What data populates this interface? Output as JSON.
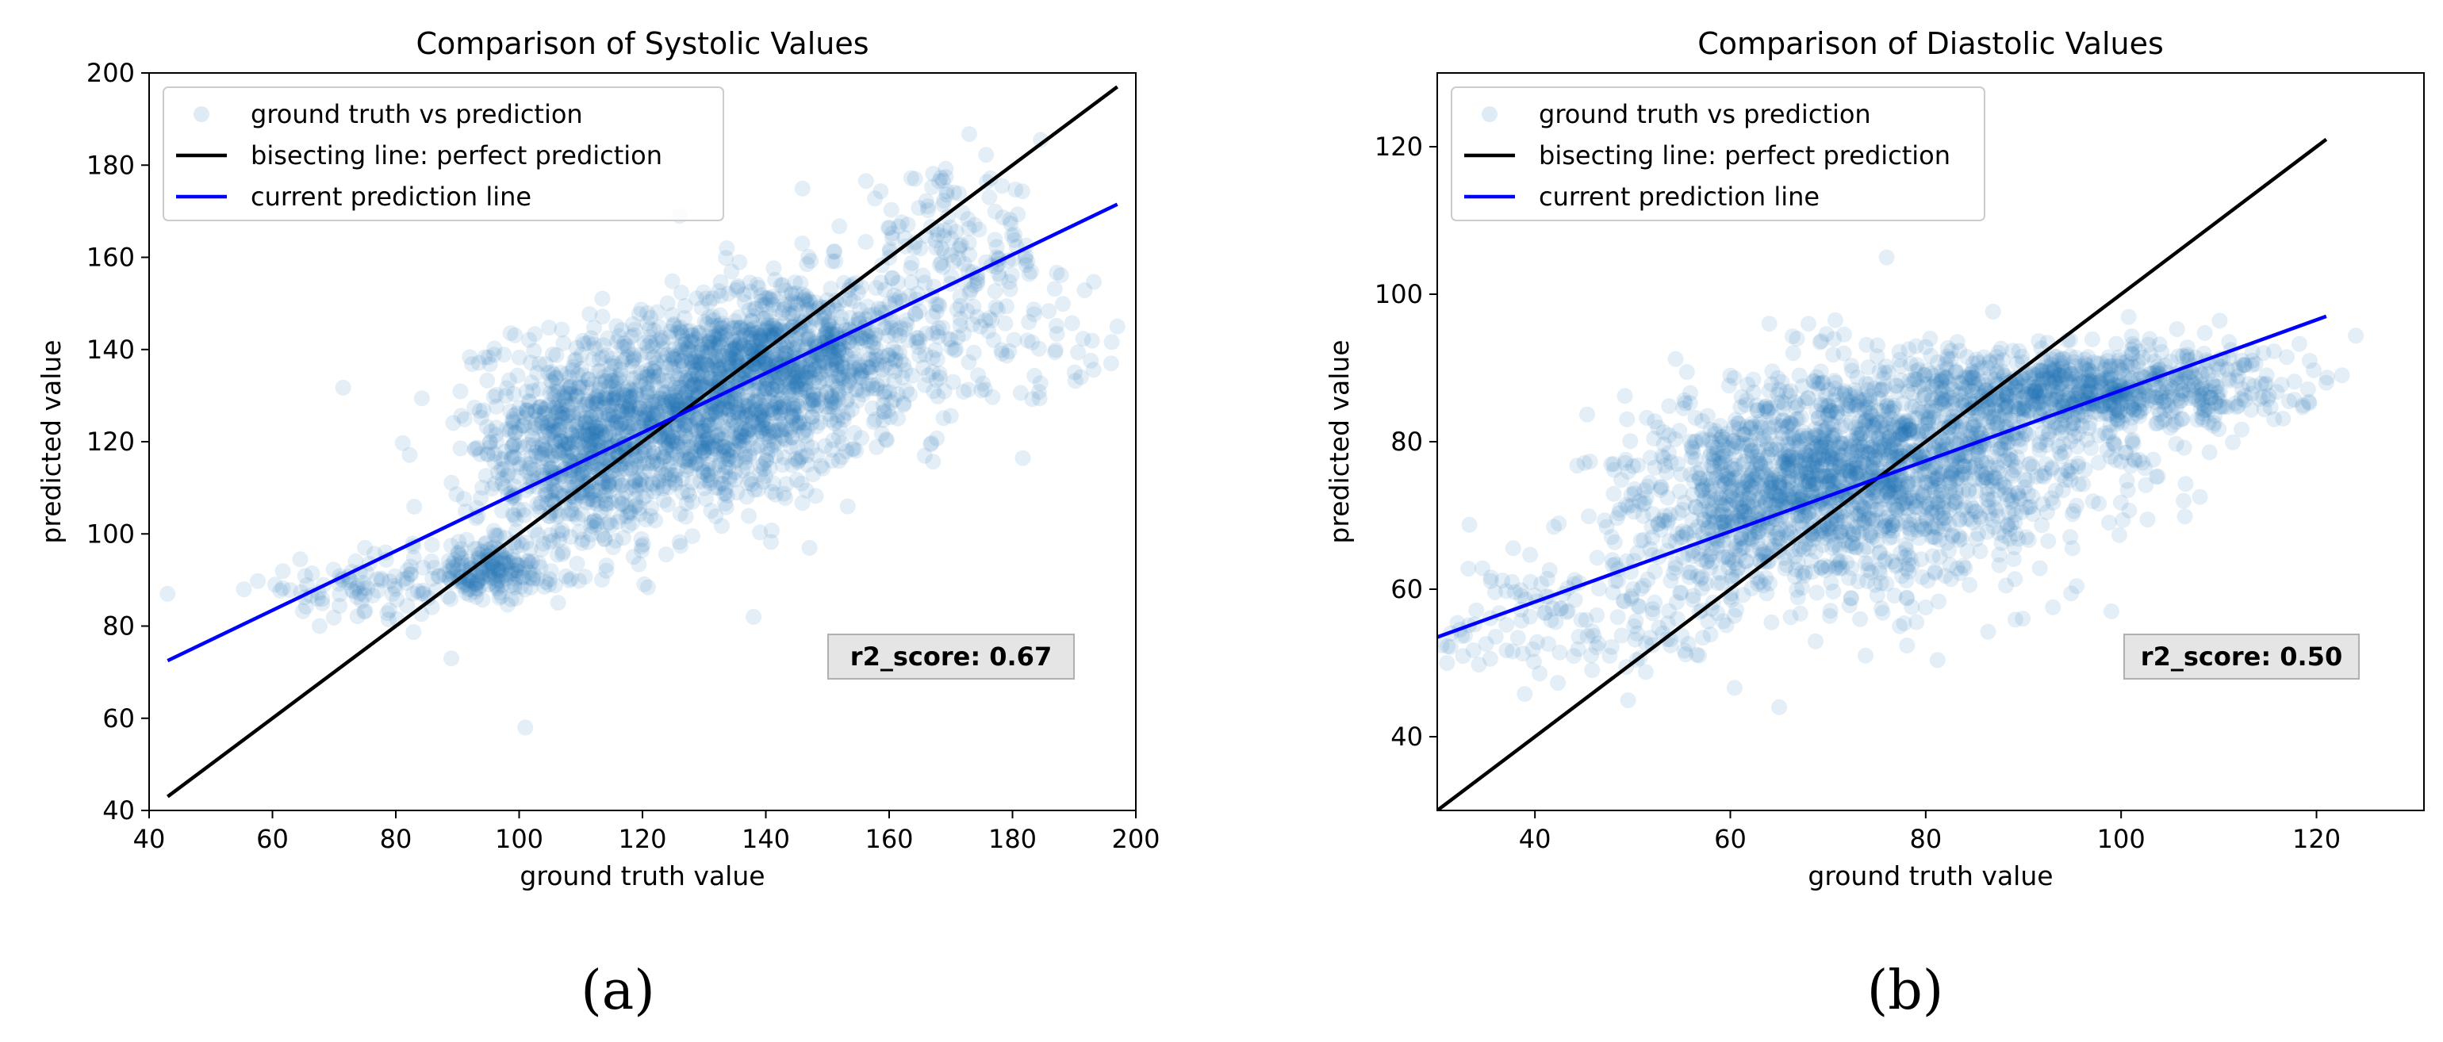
{
  "chart_data": [
    {
      "type": "scatter",
      "title": "Comparison of Systolic Values",
      "xlabel": "ground truth value",
      "ylabel": "predicted value",
      "xlim": [
        40,
        200
      ],
      "ylim": [
        40,
        200
      ],
      "xticks": [
        "40",
        "60",
        "80",
        "100",
        "120",
        "140",
        "160",
        "180",
        "200"
      ],
      "yticks": [
        "40",
        "60",
        "80",
        "100",
        "120",
        "140",
        "160",
        "180",
        "200"
      ],
      "legend": {
        "placement": "top-left",
        "entries": [
          "ground truth vs prediction",
          "bisecting line: perfect prediction",
          "current prediction line"
        ]
      },
      "series": [
        {
          "name": "ground truth vs prediction",
          "kind": "points",
          "color": "#1f77b4",
          "alpha": 0.12,
          "clusters": [
            {
              "center": [
                128,
                127
              ],
              "spread": [
                14,
                10
              ],
              "n": 1300
            },
            {
              "center": [
                145,
                140
              ],
              "spread": [
                10,
                8
              ],
              "n": 700
            },
            {
              "center": [
                110,
                115
              ],
              "spread": [
                9,
                10
              ],
              "n": 550
            },
            {
              "center": [
                95,
                92
              ],
              "spread": [
                6,
                3
              ],
              "n": 200
            },
            {
              "center": [
                75,
                88
              ],
              "spread": [
                9,
                3
              ],
              "n": 90
            },
            {
              "center": [
                170,
                160
              ],
              "spread": [
                8,
                9
              ],
              "n": 160
            },
            {
              "center": [
                178,
                140
              ],
              "spread": [
                10,
                9
              ],
              "n": 80
            }
          ],
          "outliers": [
            [
              43,
              87
            ],
            [
              101,
              58
            ],
            [
              89,
              73
            ],
            [
              138,
              82
            ],
            [
              197,
              145
            ],
            [
              126,
              169
            ],
            [
              75,
              97
            ],
            [
              196,
              137
            ]
          ]
        },
        {
          "name": "bisecting line: perfect prediction",
          "kind": "line",
          "color": "#000000",
          "points": [
            [
              43,
              43
            ],
            [
              197,
              197
            ]
          ]
        },
        {
          "name": "current prediction line",
          "kind": "line",
          "color": "#0000ff",
          "points": [
            [
              43,
              72.5
            ],
            [
              197,
              171.5
            ]
          ]
        }
      ],
      "annotation": "r2_score: 0.67",
      "caption": "(a)"
    },
    {
      "type": "scatter",
      "title": "Comparison of Diastolic Values",
      "xlabel": "ground truth value",
      "ylabel": "predicted value",
      "xlim": [
        30,
        131
      ],
      "ylim": [
        30,
        130
      ],
      "xticks": [
        "40",
        "60",
        "80",
        "100",
        "120"
      ],
      "yticks": [
        "40",
        "60",
        "80",
        "100",
        "120"
      ],
      "legend": {
        "placement": "top-left",
        "entries": [
          "ground truth vs prediction",
          "bisecting line: perfect prediction",
          "current prediction line"
        ]
      },
      "series": [
        {
          "name": "ground truth vs prediction",
          "kind": "points",
          "color": "#1f77b4",
          "alpha": 0.12,
          "clusters": [
            {
              "center": [
                72,
                75
              ],
              "spread": [
                9,
                7
              ],
              "n": 1400
            },
            {
              "center": [
                95,
                87
              ],
              "spread": [
                8,
                3
              ],
              "n": 650
            },
            {
              "center": [
                85,
                80
              ],
              "spread": [
                10,
                6
              ],
              "n": 400
            },
            {
              "center": [
                60,
                70
              ],
              "spread": [
                6,
                6
              ],
              "n": 300
            },
            {
              "center": [
                45,
                56
              ],
              "spread": [
                8,
                5
              ],
              "n": 150
            },
            {
              "center": [
                110,
                88
              ],
              "spread": [
                6,
                3
              ],
              "n": 120
            }
          ],
          "outliers": [
            [
              76,
              105
            ],
            [
              121,
              88
            ],
            [
              65,
              44
            ],
            [
              31,
              50
            ],
            [
              99,
              57
            ],
            [
              68,
              96
            ]
          ]
        },
        {
          "name": "bisecting line: perfect prediction",
          "kind": "line",
          "color": "#000000",
          "points": [
            [
              30,
              30
            ],
            [
              121,
              121
            ]
          ]
        },
        {
          "name": "current prediction line",
          "kind": "line",
          "color": "#0000ff",
          "points": [
            [
              30,
              53.5
            ],
            [
              121,
              97
            ]
          ]
        }
      ],
      "annotation": "r2_score: 0.50",
      "caption": "(b)"
    }
  ]
}
